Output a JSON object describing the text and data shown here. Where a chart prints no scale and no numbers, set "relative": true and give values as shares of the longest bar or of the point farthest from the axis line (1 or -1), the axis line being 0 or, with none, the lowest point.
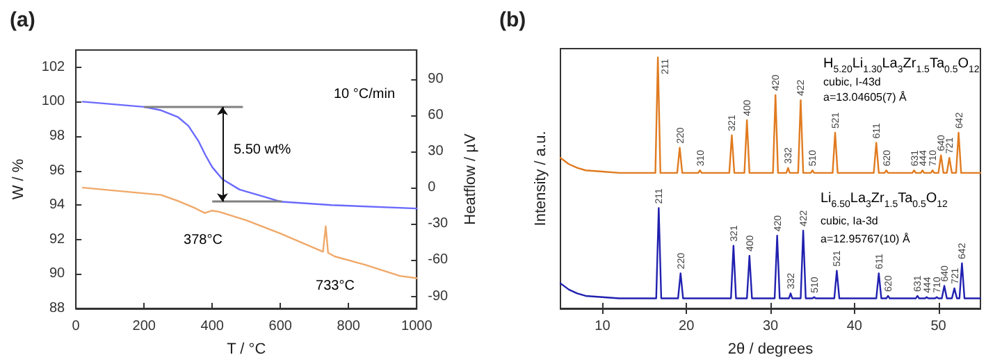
{
  "chart_data": [
    {
      "type": "line",
      "title": "(a)",
      "xlabel": "T / °C",
      "ylabel": "W / %",
      "y2label": "Heatflow / µV",
      "xlim": [
        0,
        1000
      ],
      "xticks": [
        0,
        200,
        400,
        600,
        800,
        1000
      ],
      "ylim": [
        88,
        103
      ],
      "yticks": [
        88,
        90,
        92,
        94,
        96,
        98,
        100,
        102
      ],
      "y2lim": [
        -100,
        114
      ],
      "y2ticks": [
        -90,
        -60,
        -30,
        0,
        30,
        60,
        90
      ],
      "series": [
        {
          "color": "#6a6aff",
          "x": [
            20,
            200,
            250,
            300,
            330,
            360,
            380,
            400,
            430,
            480,
            550,
            600,
            750,
            1000
          ],
          "values": [
            100.0,
            99.7,
            99.5,
            99.1,
            98.6,
            97.7,
            96.9,
            96.2,
            95.5,
            94.9,
            94.5,
            94.2,
            94.0,
            93.8
          ]
        },
        {
          "color": "#f0a868",
          "axis": "y2",
          "x": [
            20,
            250,
            300,
            350,
            378,
            400,
            420,
            500,
            600,
            725,
            733,
            740,
            760,
            850,
            950,
            1000
          ],
          "values": [
            0,
            -6,
            -11,
            -17,
            -21,
            -19,
            -20,
            -27,
            -38,
            -53,
            -32,
            -54,
            -57,
            -64,
            -73,
            -75
          ]
        }
      ],
      "ref_lines": [
        {
          "axis": "y",
          "value": 99.7,
          "color": "#808080"
        },
        {
          "axis": "y",
          "value": 94.2,
          "color": "#808080"
        }
      ],
      "annotations": [
        "10 °C/min",
        "5.50 wt%",
        "378°C",
        "733°C"
      ]
    },
    {
      "type": "line",
      "title": "(b)",
      "xlabel": "2θ / degrees",
      "ylabel": "Intensity / a.u.",
      "relative": true,
      "xlim": [
        5,
        55
      ],
      "xticks": [
        10,
        20,
        30,
        40,
        50
      ],
      "tick_labels": "x",
      "series": [
        {
          "color": "#e07b20",
          "x": [
            5,
            6,
            7,
            8,
            10,
            12,
            16.3,
            16.6,
            16.9,
            18.9,
            19.2,
            19.5,
            21.4,
            21.6,
            21.8,
            25.1,
            25.4,
            25.7,
            26.9,
            27.2,
            27.5,
            30.3,
            30.6,
            30.9,
            31.9,
            32.1,
            32.3,
            33.3,
            33.6,
            33.9,
            34.8,
            35.0,
            35.2,
            37.4,
            37.7,
            38.0,
            42.3,
            42.6,
            42.9,
            43.6,
            43.8,
            44.0,
            46.9,
            47.1,
            47.3,
            47.9,
            48.1,
            48.3,
            49.1,
            49.3,
            49.5,
            50.0,
            50.3,
            50.6,
            51.0,
            51.3,
            51.6,
            52.1,
            52.4,
            52.7,
            55
          ],
          "values": [
            0.6,
            0.575,
            0.56,
            0.55,
            0.545,
            0.54,
            0.54,
            1.0,
            0.54,
            0.54,
            0.64,
            0.54,
            0.54,
            0.55,
            0.54,
            0.54,
            0.69,
            0.54,
            0.54,
            0.75,
            0.54,
            0.54,
            0.85,
            0.54,
            0.54,
            0.56,
            0.54,
            0.54,
            0.83,
            0.54,
            0.54,
            0.55,
            0.54,
            0.54,
            0.7,
            0.54,
            0.54,
            0.66,
            0.54,
            0.54,
            0.55,
            0.54,
            0.54,
            0.55,
            0.54,
            0.54,
            0.55,
            0.54,
            0.54,
            0.55,
            0.54,
            0.54,
            0.61,
            0.54,
            0.54,
            0.6,
            0.54,
            0.54,
            0.7,
            0.54,
            0.54
          ]
        },
        {
          "color": "#2020b0",
          "x": [
            5,
            6,
            7,
            8,
            10,
            12,
            16.4,
            16.7,
            17.0,
            19.0,
            19.3,
            19.6,
            25.3,
            25.6,
            25.9,
            27.2,
            27.5,
            27.8,
            30.5,
            30.8,
            31.1,
            32.2,
            32.4,
            32.6,
            33.6,
            33.9,
            34.2,
            35.0,
            35.2,
            35.4,
            37.6,
            37.9,
            38.2,
            42.6,
            42.9,
            43.2,
            43.8,
            44.0,
            44.2,
            47.3,
            47.5,
            47.7,
            48.4,
            48.6,
            48.8,
            49.6,
            49.8,
            50.0,
            50.4,
            50.7,
            51.0,
            51.6,
            51.9,
            52.2,
            52.5,
            52.8,
            53.1,
            55
          ],
          "values": [
            0.1,
            0.075,
            0.06,
            0.05,
            0.045,
            0.04,
            0.04,
            0.4,
            0.04,
            0.04,
            0.14,
            0.04,
            0.04,
            0.25,
            0.04,
            0.04,
            0.21,
            0.04,
            0.04,
            0.29,
            0.04,
            0.04,
            0.06,
            0.04,
            0.04,
            0.31,
            0.04,
            0.04,
            0.045,
            0.04,
            0.04,
            0.15,
            0.04,
            0.04,
            0.14,
            0.04,
            0.04,
            0.05,
            0.04,
            0.04,
            0.05,
            0.04,
            0.04,
            0.045,
            0.04,
            0.04,
            0.045,
            0.04,
            0.04,
            0.09,
            0.04,
            0.04,
            0.08,
            0.04,
            0.04,
            0.18,
            0.04,
            0.04
          ]
        }
      ],
      "annotations": [
        "H$_{5.20}$Li$_{1.30}$La$_{3}$Zr$_{1.5}$Ta$_{0.5}$O$_{12}$",
        "cubic, I-43d",
        "a=13.04605(7) Å",
        "Li$_{6.50}$La$_{3}$Zr$_{1.5}$Ta$_{0.5}$O$_{12}$",
        "cubic, Ia-3d",
        "a=12.95767(10) Å",
        {
          "text": "211",
          "x": 16.6,
          "y": 1.0
        },
        {
          "text": "220",
          "x": 19.2,
          "y": 0.64
        },
        {
          "text": "310",
          "x": 21.6,
          "y": 0.55
        },
        {
          "text": "321",
          "x": 25.4,
          "y": 0.69
        },
        {
          "text": "400",
          "x": 27.2,
          "y": 0.75
        },
        {
          "text": "420",
          "x": 30.6,
          "y": 0.85
        },
        {
          "text": "332",
          "x": 32.1,
          "y": 0.56
        },
        {
          "text": "422",
          "x": 33.6,
          "y": 0.83
        },
        {
          "text": "510",
          "x": 35.0,
          "y": 0.55
        },
        {
          "text": "521",
          "x": 37.7,
          "y": 0.7
        },
        {
          "text": "611",
          "x": 42.6,
          "y": 0.66
        },
        {
          "text": "620",
          "x": 43.8,
          "y": 0.55
        },
        {
          "text": "631",
          "x": 47.1,
          "y": 0.55
        },
        {
          "text": "444",
          "x": 48.1,
          "y": 0.55
        },
        {
          "text": "710",
          "x": 49.3,
          "y": 0.55
        },
        {
          "text": "640",
          "x": 50.3,
          "y": 0.61
        },
        {
          "text": "721",
          "x": 51.3,
          "y": 0.6
        },
        {
          "text": "642",
          "x": 52.4,
          "y": 0.7
        },
        {
          "text": "211",
          "x": 16.7,
          "y": 0.4
        },
        {
          "text": "220",
          "x": 19.3,
          "y": 0.14
        },
        {
          "text": "321",
          "x": 25.6,
          "y": 0.25
        },
        {
          "text": "400",
          "x": 27.5,
          "y": 0.21
        },
        {
          "text": "420",
          "x": 30.8,
          "y": 0.29
        },
        {
          "text": "332",
          "x": 32.4,
          "y": 0.06
        },
        {
          "text": "422",
          "x": 33.9,
          "y": 0.31
        },
        {
          "text": "510",
          "x": 35.2,
          "y": 0.045
        },
        {
          "text": "521",
          "x": 37.9,
          "y": 0.15
        },
        {
          "text": "611",
          "x": 42.9,
          "y": 0.14
        },
        {
          "text": "620",
          "x": 44.0,
          "y": 0.05
        },
        {
          "text": "631",
          "x": 47.5,
          "y": 0.05
        },
        {
          "text": "444",
          "x": 48.6,
          "y": 0.045
        },
        {
          "text": "710",
          "x": 49.8,
          "y": 0.045
        },
        {
          "text": "640",
          "x": 50.7,
          "y": 0.09
        },
        {
          "text": "721",
          "x": 51.9,
          "y": 0.08
        },
        {
          "text": "642",
          "x": 52.8,
          "y": 0.18
        }
      ]
    }
  ]
}
